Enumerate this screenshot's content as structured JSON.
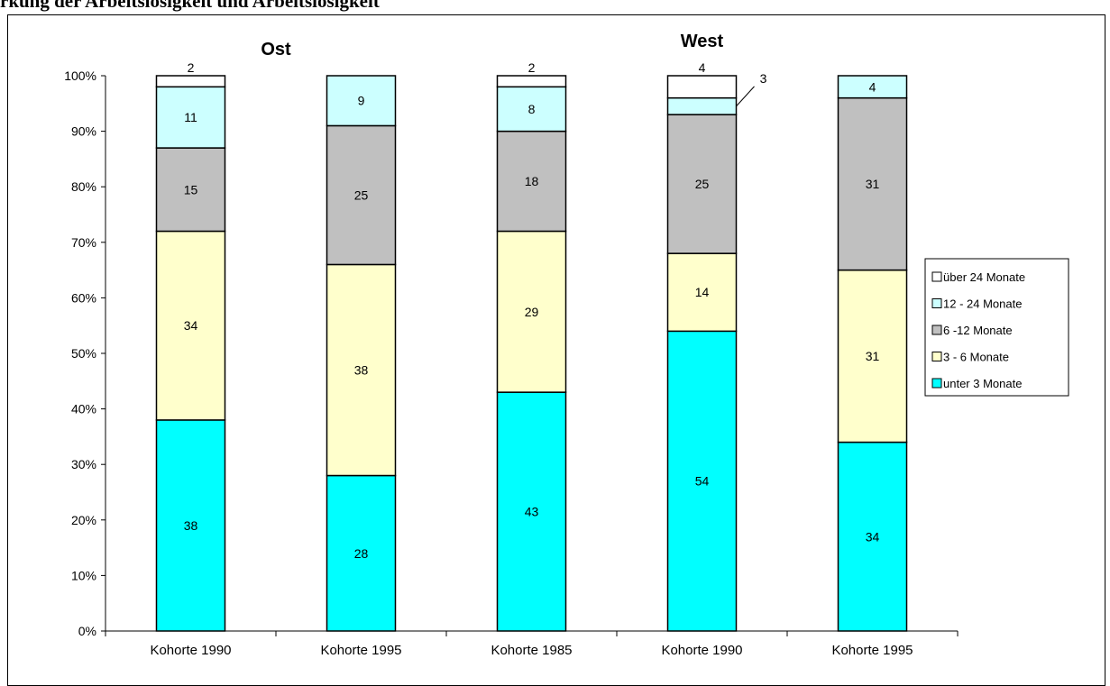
{
  "header": {
    "text": "rkung der Arbeitslosigkeit und Arbeitslosigkeit"
  },
  "colors": {
    "ueber_24": "#ffffff",
    "m12_24": "#ccffff",
    "m6_12": "#c0c0c0",
    "m3_6": "#ffffcc",
    "unter_3": "#00ffff"
  },
  "chart_data": {
    "type": "bar",
    "stacked": true,
    "title": "",
    "xlabel": "",
    "ylabel": "",
    "ylim": [
      0,
      100
    ],
    "y_ticks": [
      "0%",
      "10%",
      "20%",
      "30%",
      "40%",
      "50%",
      "60%",
      "70%",
      "80%",
      "90%",
      "100%"
    ],
    "grid": false,
    "legend_position": "right",
    "groups": [
      {
        "label": "Ost",
        "categories": [
          0,
          1
        ]
      },
      {
        "label": "West",
        "categories": [
          2,
          3,
          4
        ]
      }
    ],
    "categories": [
      "Kohorte 1990",
      "Kohorte 1995",
      "Kohorte 1985",
      "Kohorte 1990",
      "Kohorte 1995"
    ],
    "series": [
      {
        "name": "unter 3 Monate",
        "values": [
          38,
          28,
          43,
          54,
          34
        ],
        "labels": [
          "38",
          "28",
          "43",
          "54",
          "34"
        ]
      },
      {
        "name": "3 -  6 Monate",
        "values": [
          34,
          38,
          29,
          14,
          31
        ],
        "labels": [
          "34",
          "38",
          "29",
          "14",
          "31"
        ]
      },
      {
        "name": "6 -12 Monate",
        "values": [
          15,
          25,
          18,
          25,
          31
        ],
        "labels": [
          "15",
          "25",
          "18",
          "25",
          "31"
        ]
      },
      {
        "name": "12 - 24 Monate",
        "values": [
          11,
          9,
          8,
          3,
          4
        ],
        "labels": [
          "11",
          "9",
          "8",
          "3",
          "4"
        ]
      },
      {
        "name": "über 24 Monate",
        "values": [
          2,
          0,
          2,
          4,
          0
        ],
        "labels": [
          "2",
          "",
          "2",
          "4",
          ""
        ]
      }
    ],
    "legend_order": [
      "über 24 Monate",
      "12 - 24 Monate",
      "6 -12 Monate",
      "3 -  6 Monate",
      "unter 3 Monate"
    ]
  }
}
